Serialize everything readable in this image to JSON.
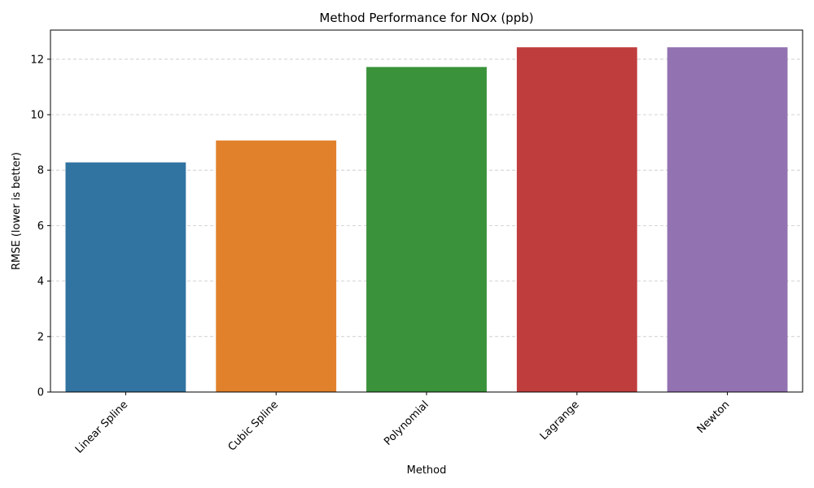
{
  "chart_data": {
    "type": "bar",
    "title": "Method Performance for NOx (ppb)",
    "xlabel": "Method",
    "ylabel": "RMSE (lower is better)",
    "categories": [
      "Linear Spline",
      "Cubic Spline",
      "Polynomial",
      "Lagrange",
      "Newton"
    ],
    "values": [
      8.28,
      9.07,
      11.72,
      12.43,
      12.43
    ],
    "colors": [
      "#3274a1",
      "#e1812c",
      "#3a923a",
      "#c03d3e",
      "#9372b2"
    ],
    "ylim": [
      0,
      13.05
    ],
    "yticks": [
      0,
      2,
      4,
      6,
      8,
      10,
      12
    ],
    "grid": "y-dashed",
    "xtick_rotation_deg": 45
  }
}
